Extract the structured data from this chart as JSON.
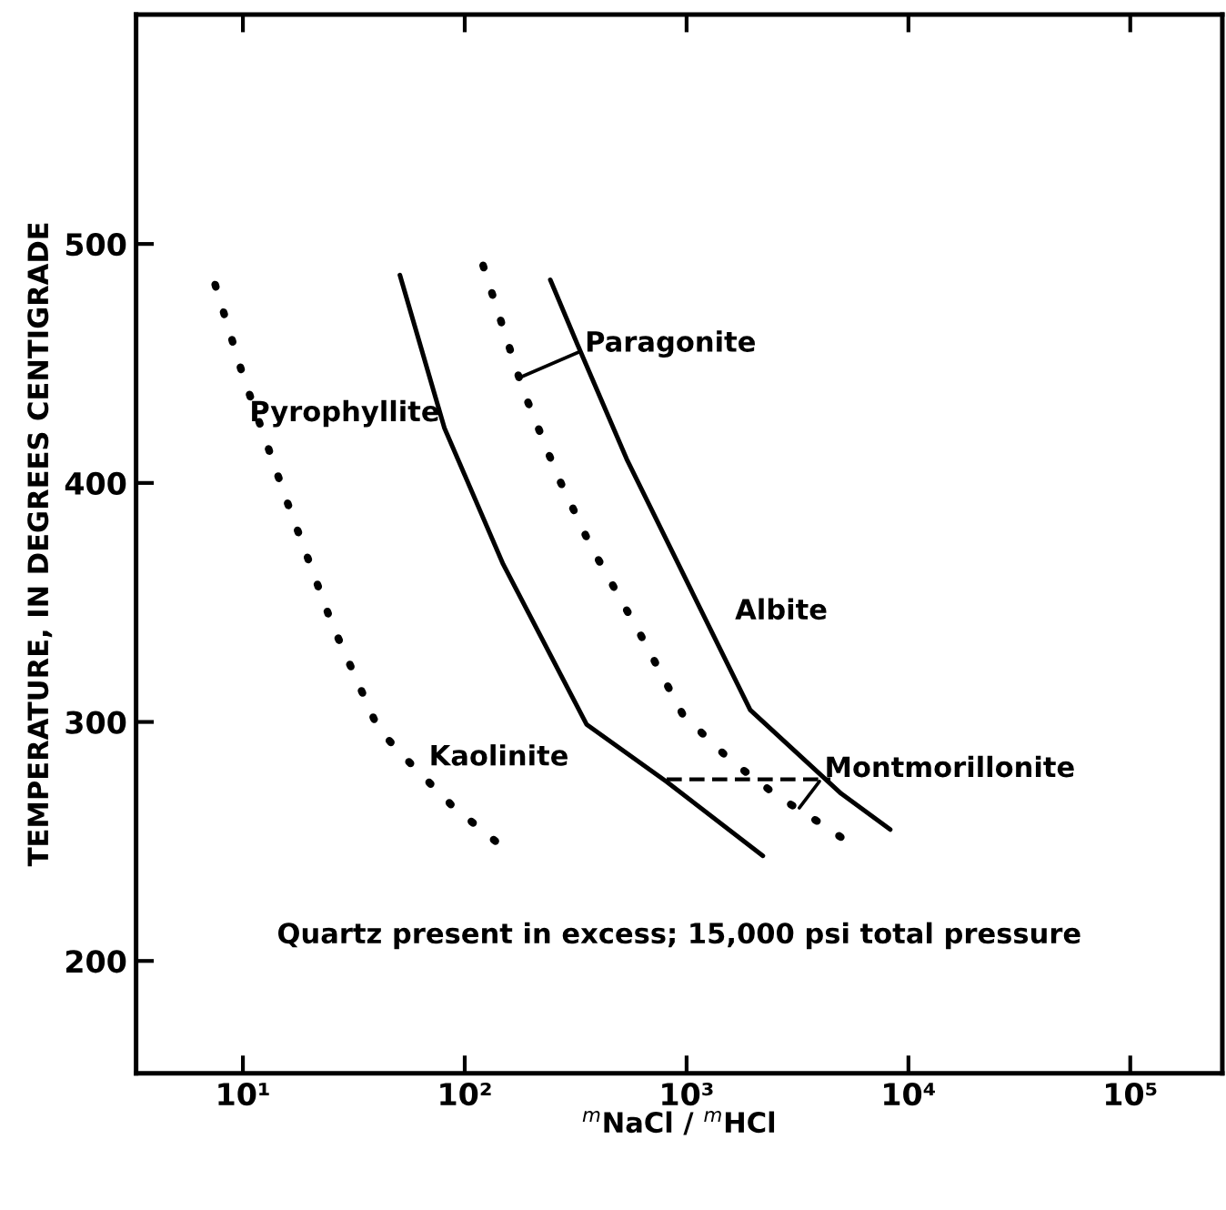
{
  "chart_data": {
    "type": "line",
    "xlabel": "$^{m}$NaCl / $^{m}$HCl",
    "ylabel": "TEMPERATURE, IN DEGREES CENTIGRADE",
    "log": "x",
    "xlim": [
      3.3,
      260000
    ],
    "xticks": [
      {
        "value": 10,
        "label": "10¹"
      },
      {
        "value": 100,
        "label": "10²"
      },
      {
        "value": 1000,
        "label": "10³"
      },
      {
        "value": 10000,
        "label": "10⁴"
      },
      {
        "value": 100000,
        "label": "10⁵"
      }
    ],
    "ylim": [
      153,
      596
    ],
    "yticks": [
      200,
      300,
      400,
      500
    ],
    "series": [
      {
        "color": "#000000",
        "line_style": "solid",
        "x": [
          51,
          81,
          149,
          354,
          813,
          2208
        ],
        "values": [
          487,
          423,
          366,
          299,
          275,
          244
        ]
      },
      {
        "color": "#000000",
        "line_style": "solid",
        "x": [
          243,
          322,
          537,
          1038,
          1936,
          4977,
          8279
        ],
        "values": [
          485,
          458,
          410,
          356,
          305,
          270,
          255
        ]
      },
      {
        "color": "#000000",
        "line_style": "dotted",
        "x": [
          7.5,
          10,
          15.7,
          25.2,
          40.4,
          47.9,
          57.8,
          87.6,
          138
        ],
        "values": [
          483,
          445,
          393,
          341,
          298,
          290,
          282,
          265,
          250
        ]
      },
      {
        "color": "#000000",
        "line_style": "dotted",
        "x": [
          121,
          183,
          262,
          368,
          624,
          963,
          1574,
          2570,
          4276,
          5470
        ],
        "values": [
          491,
          439,
          403,
          374,
          336,
          303,
          284,
          269,
          256,
          249
        ]
      },
      {
        "color": "#000000",
        "line_style": "dashed",
        "x": [
          813,
          4450
        ],
        "values": [
          276,
          276
        ]
      }
    ],
    "annotations": [
      "Pyrophyllite",
      {
        "text": "Paragonite",
        "x": 176,
        "y": 444
      },
      "Albite",
      "Kaolinite",
      {
        "text": "Montmorillonite",
        "x": 3220,
        "y": 264
      },
      "Quartz present in excess; 15,000 psi total pressure"
    ]
  }
}
